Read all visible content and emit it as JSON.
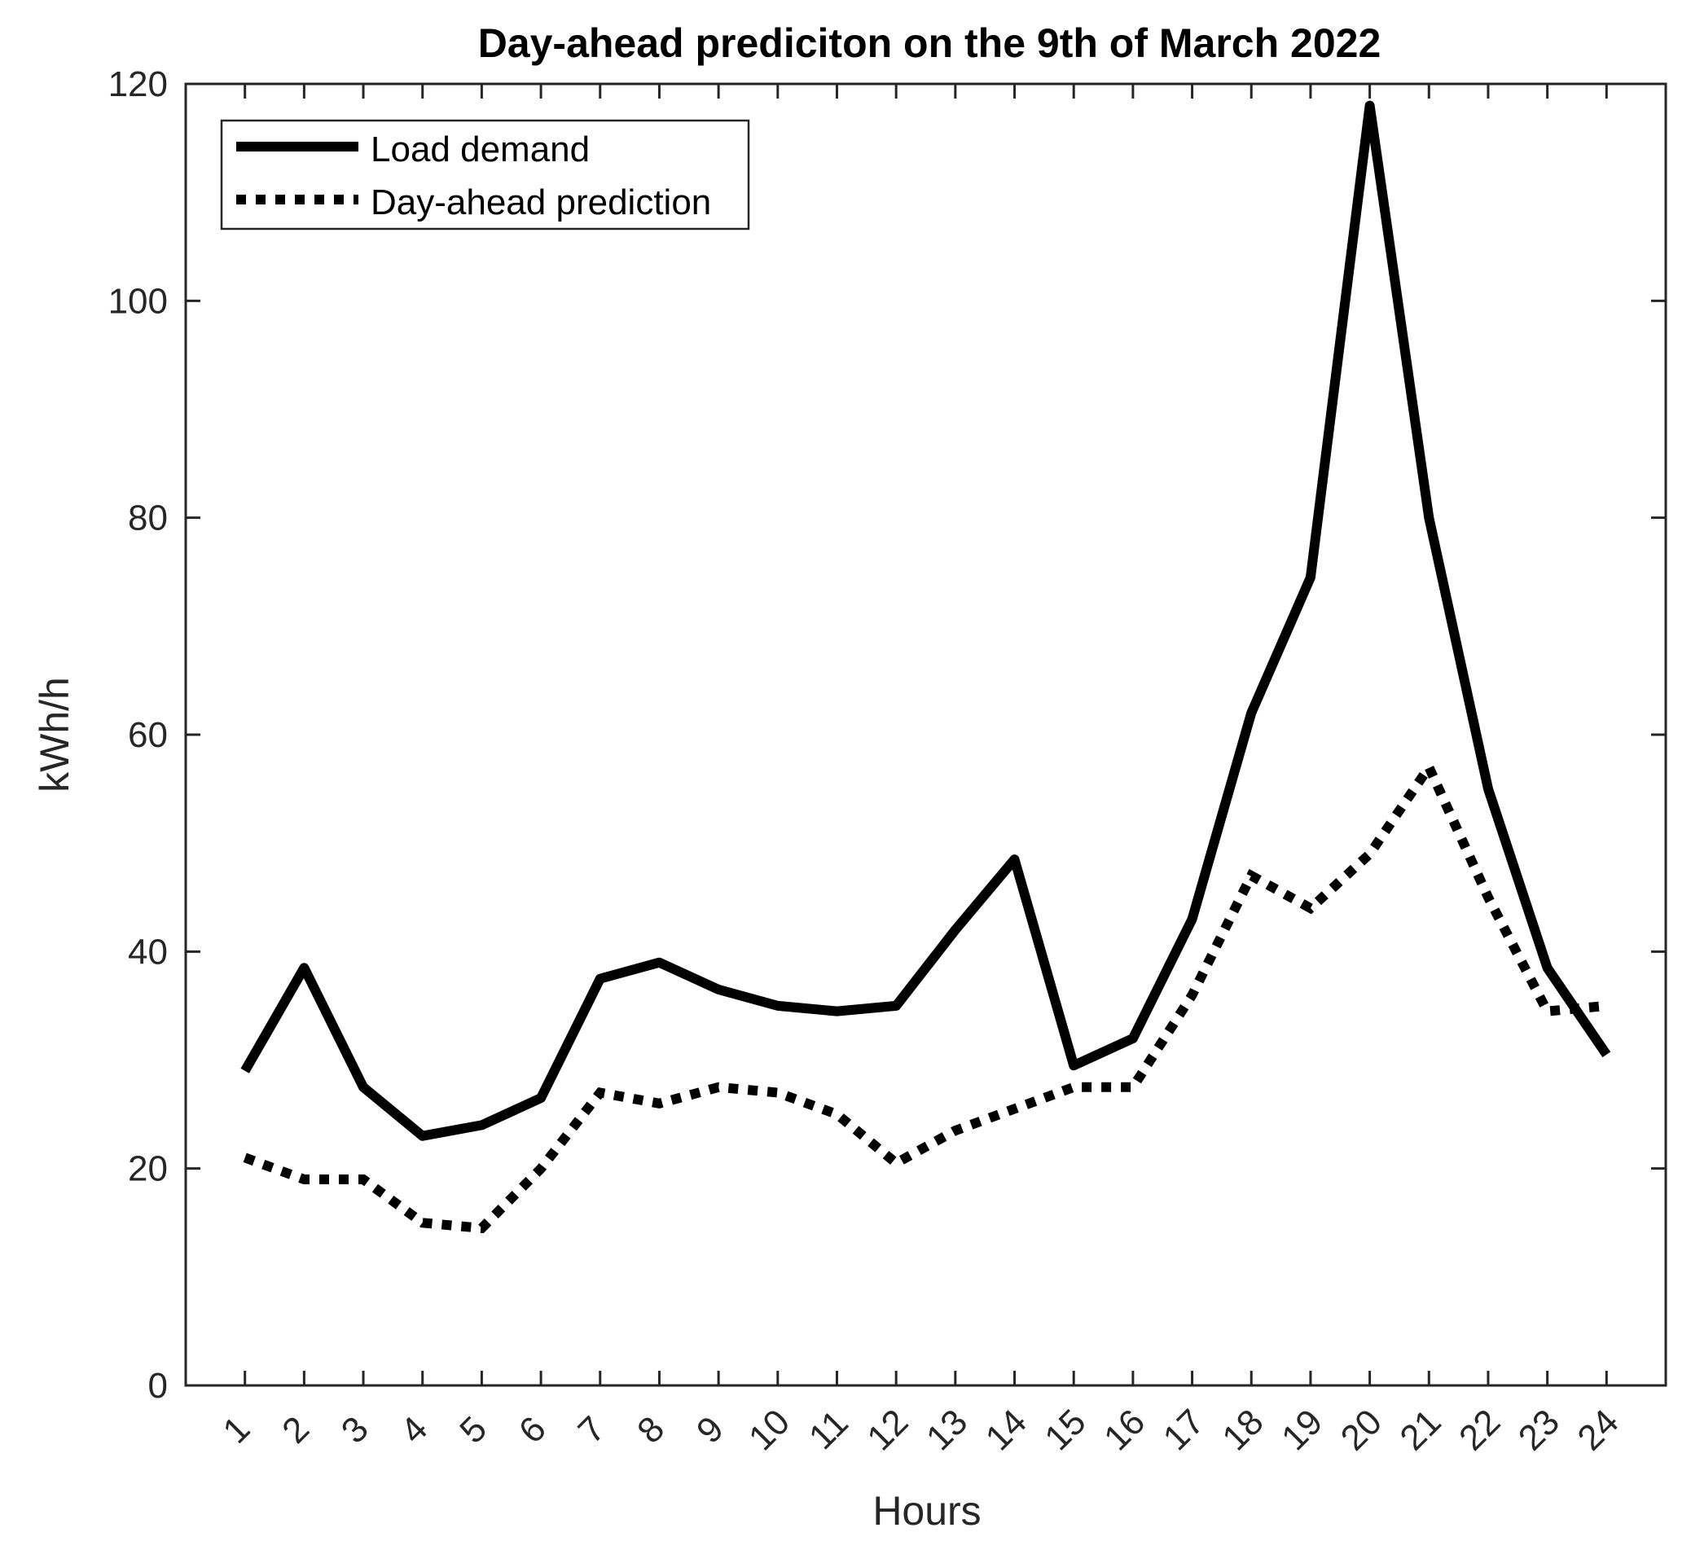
{
  "chart_data": {
    "type": "line",
    "title": "Day-ahead prediciton on the 9th of March 2022",
    "xlabel": "Hours",
    "ylabel": "kWh/h",
    "categories": [
      "1",
      "2",
      "3",
      "4",
      "5",
      "6",
      "7",
      "8",
      "9",
      "10",
      "11",
      "12",
      "13",
      "14",
      "15",
      "16",
      "17",
      "18",
      "19",
      "20",
      "21",
      "22",
      "23",
      "24"
    ],
    "x": [
      1,
      2,
      3,
      4,
      5,
      6,
      7,
      8,
      9,
      10,
      11,
      12,
      13,
      14,
      15,
      16,
      17,
      18,
      19,
      20,
      21,
      22,
      23,
      24
    ],
    "xlim": [
      0,
      25
    ],
    "ylim": [
      0,
      120
    ],
    "yticks": [
      0,
      20,
      40,
      60,
      80,
      100,
      120
    ],
    "grid": false,
    "legend_position": "top-left",
    "series": [
      {
        "name": "Load demand",
        "style": "solid",
        "color": "#000000",
        "values": [
          29,
          38.5,
          27.5,
          23,
          24,
          26.5,
          37.5,
          39,
          36.5,
          35,
          34.5,
          35,
          42,
          48.5,
          29.5,
          32,
          43,
          62,
          74.5,
          118,
          80,
          55,
          38.5,
          30.5
        ]
      },
      {
        "name": "Day-ahead prediction",
        "style": "dotted",
        "color": "#000000",
        "values": [
          21,
          19,
          19,
          15,
          14.5,
          20,
          27,
          26,
          27.5,
          27,
          25,
          20.5,
          23.5,
          25.5,
          27.5,
          27.5,
          36,
          47,
          44,
          49,
          57,
          45,
          34.5,
          35
        ]
      }
    ]
  }
}
